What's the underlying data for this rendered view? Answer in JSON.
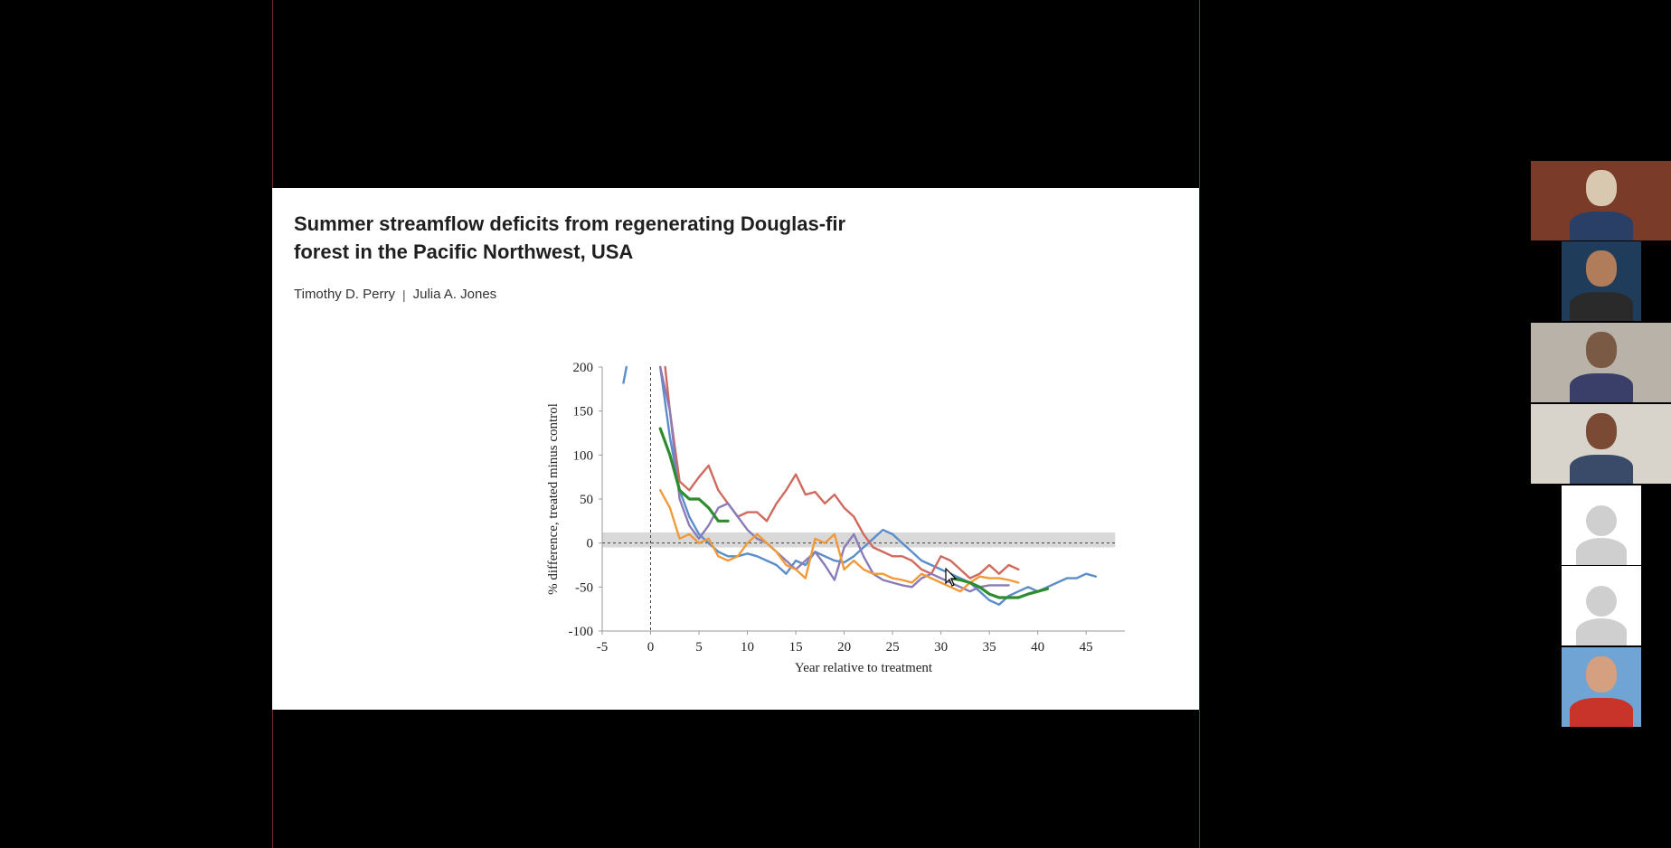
{
  "slide": {
    "title_line1": "Summer streamflow deficits from regenerating Douglas-fir",
    "title_line2": "forest in the Pacific Northwest, USA",
    "author1": "Timothy D. Perry",
    "author_separator": "|",
    "author2": "Julia A. Jones"
  },
  "chart_data": {
    "type": "line",
    "title": "",
    "xlabel": "Year relative to treatment",
    "ylabel": "% difference, treated minus control",
    "xlim": [
      -5,
      49
    ],
    "ylim": [
      -100,
      200
    ],
    "xticks": [
      -5,
      0,
      5,
      10,
      15,
      20,
      25,
      30,
      35,
      40,
      45
    ],
    "yticks": [
      200,
      150,
      100,
      50,
      0,
      -50,
      -100
    ],
    "reference_band": [
      -5,
      12
    ],
    "reference_line_y": 0,
    "treatment_line_x": 0,
    "grid": false,
    "series": [
      {
        "color": "#5b8dc9",
        "x": [
          1,
          2,
          3,
          4,
          5,
          6,
          7,
          8,
          9,
          10,
          11,
          12,
          13,
          14,
          15,
          16,
          17,
          18,
          19,
          20,
          21,
          22,
          23,
          24,
          25,
          26,
          27,
          28,
          29,
          30,
          31,
          32,
          33,
          34,
          35,
          36,
          37,
          38,
          39,
          40,
          41,
          42,
          43,
          44,
          45,
          46
        ],
        "y": [
          200,
          120,
          60,
          30,
          10,
          0,
          -10,
          -15,
          -15,
          -12,
          -15,
          -20,
          -25,
          -35,
          -20,
          -25,
          -10,
          -15,
          -20,
          -22,
          -15,
          -5,
          5,
          15,
          10,
          0,
          -10,
          -20,
          -25,
          -30,
          -35,
          -40,
          -45,
          -55,
          -65,
          -70,
          -60,
          -55,
          -50,
          -55,
          -50,
          -45,
          -40,
          -40,
          -35,
          -38
        ]
      },
      {
        "color": "#cf6a5e",
        "x": [
          1.5,
          2,
          3,
          4,
          5,
          6,
          7,
          8,
          9,
          10,
          11,
          12,
          13,
          14,
          15,
          16,
          17,
          18,
          19,
          20,
          21,
          22,
          23,
          24,
          25,
          26,
          27,
          28,
          29,
          30,
          31,
          32,
          33,
          34,
          35,
          36,
          37,
          38
        ],
        "y": [
          200,
          150,
          70,
          60,
          75,
          88,
          60,
          45,
          30,
          35,
          35,
          25,
          45,
          60,
          78,
          55,
          58,
          45,
          55,
          40,
          30,
          10,
          -5,
          -10,
          -15,
          -15,
          -20,
          -30,
          -35,
          -15,
          -20,
          -30,
          -40,
          -35,
          -25,
          -35,
          -25,
          -30
        ]
      },
      {
        "color": "#8b7bb8",
        "x": [
          1,
          2,
          3,
          4,
          5,
          6,
          7,
          8,
          9,
          10,
          11,
          12,
          13,
          14,
          15,
          16,
          17,
          18,
          19,
          20,
          21,
          22,
          23,
          24,
          25,
          26,
          27,
          28,
          29,
          30,
          31,
          32,
          33,
          34,
          35,
          36,
          37
        ],
        "y": [
          200,
          150,
          50,
          20,
          5,
          20,
          40,
          45,
          30,
          15,
          5,
          0,
          -10,
          -20,
          -30,
          -20,
          -10,
          -25,
          -42,
          -5,
          10,
          -15,
          -35,
          -42,
          -45,
          -48,
          -50,
          -40,
          -35,
          -40,
          -45,
          -50,
          -55,
          -50,
          -48,
          -48,
          -48
        ]
      },
      {
        "color": "#f09a3a",
        "x": [
          1,
          2,
          3,
          4,
          5,
          6,
          7,
          8,
          9,
          10,
          11,
          12,
          13,
          14,
          15,
          16,
          17,
          18,
          19,
          20,
          21,
          22,
          23,
          24,
          25,
          26,
          27,
          28,
          29,
          30,
          31,
          32,
          33,
          34,
          35,
          36,
          37,
          38
        ],
        "y": [
          60,
          40,
          5,
          10,
          0,
          5,
          -15,
          -20,
          -15,
          0,
          10,
          0,
          -10,
          -25,
          -30,
          -40,
          5,
          0,
          10,
          -30,
          -20,
          -30,
          -35,
          -35,
          -40,
          -42,
          -45,
          -35,
          -40,
          -45,
          -50,
          -55,
          -45,
          -38,
          -40,
          -40,
          -42,
          -45
        ]
      },
      {
        "color": "#2e8b2e",
        "x": [
          1,
          2,
          3,
          4,
          5,
          6,
          7,
          8
        ],
        "y": [
          130,
          100,
          60,
          50,
          50,
          40,
          25,
          25
        ]
      },
      {
        "color": "#2e8b2e",
        "x": [
          31,
          32,
          33,
          34,
          35,
          36,
          37,
          38,
          39,
          40,
          41
        ],
        "y": [
          -40,
          -42,
          -45,
          -50,
          -58,
          -62,
          -62,
          -62,
          -58,
          -55,
          -52
        ]
      },
      {
        "color": "#5b8dc9",
        "x": [
          -2.8,
          -2.5
        ],
        "y": [
          182,
          200
        ]
      }
    ]
  },
  "participants": [
    {
      "type": "video",
      "palette": [
        "#7a3b28",
        "#d9c8b0",
        "#2a3f66"
      ]
    },
    {
      "type": "video",
      "palette": [
        "#1f3c5a",
        "#b07c5a",
        "#2a2a2a"
      ]
    },
    {
      "type": "video",
      "palette": [
        "#b8b2a8",
        "#7a5a44",
        "#3a3f6a"
      ]
    },
    {
      "type": "video",
      "palette": [
        "#d8d4cc",
        "#7a4a34",
        "#3a4b6a"
      ]
    },
    {
      "type": "avatar"
    },
    {
      "type": "avatar"
    },
    {
      "type": "video",
      "palette": [
        "#6fa4d4",
        "#d4a080",
        "#c8332a"
      ]
    }
  ]
}
